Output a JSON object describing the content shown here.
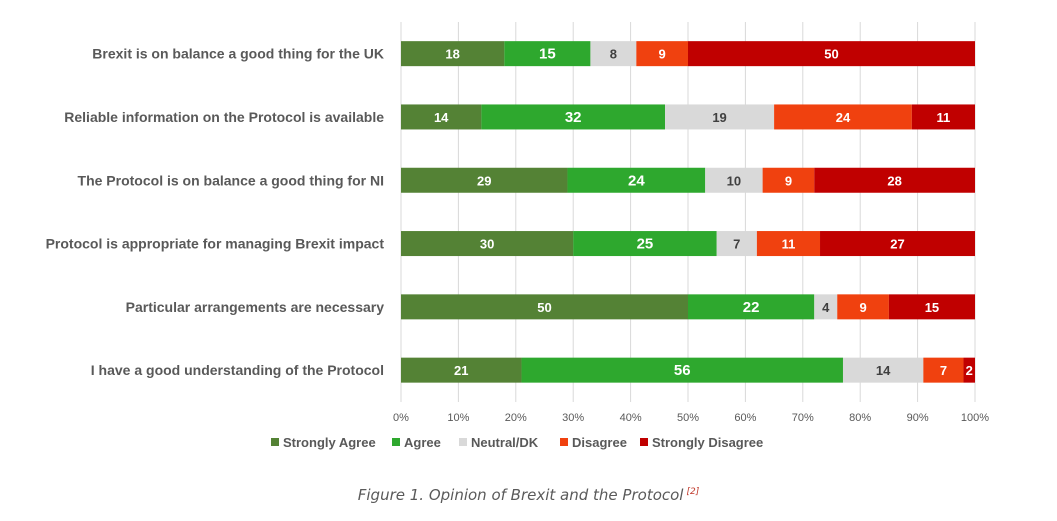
{
  "chart_data": {
    "type": "bar",
    "orientation": "horizontal",
    "stacked": "percent",
    "categories": [
      "Brexit is on balance a good thing for the UK",
      "Reliable information on the Protocol is available",
      "The Protocol is on balance a good thing for NI",
      "Protocol is appropriate for managing Brexit impact",
      "Particular arrangements are necessary",
      "I have a good understanding of the Protocol"
    ],
    "series": [
      {
        "name": "Strongly Agree",
        "color": "#548235",
        "values": [
          18,
          14,
          29,
          30,
          50,
          21
        ]
      },
      {
        "name": "Agree",
        "color": "#2ea82e",
        "values": [
          15,
          32,
          24,
          25,
          22,
          56
        ]
      },
      {
        "name": "Neutral/DK",
        "color": "#d9d9d9",
        "values": [
          8,
          19,
          10,
          7,
          4,
          14
        ]
      },
      {
        "name": "Disagree",
        "color": "#f0410f",
        "values": [
          9,
          24,
          9,
          11,
          9,
          7
        ]
      },
      {
        "name": "Strongly Disagree",
        "color": "#c00000",
        "values": [
          50,
          11,
          28,
          27,
          15,
          2
        ]
      }
    ],
    "xlim": [
      0,
      100
    ],
    "xticks": [
      "0%",
      "10%",
      "20%",
      "30%",
      "40%",
      "50%",
      "60%",
      "70%",
      "80%",
      "90%",
      "100%"
    ],
    "grid": true,
    "legend": "bottom"
  },
  "caption": {
    "text": "Figure 1. Opinion of Brexit and the Protocol",
    "ref": "[2]"
  }
}
